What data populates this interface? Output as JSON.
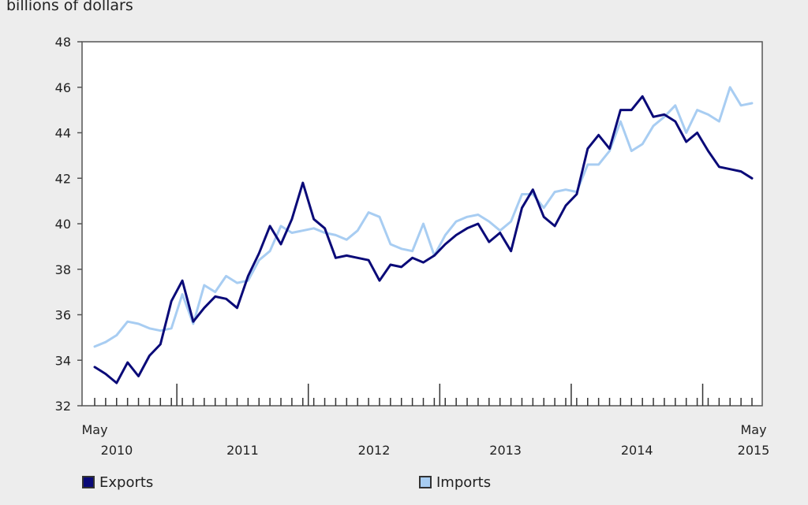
{
  "chart_data": {
    "type": "line",
    "ylabel": "billions of dollars",
    "ylim": [
      32,
      48
    ],
    "yticks": [
      32,
      34,
      36,
      38,
      40,
      42,
      44,
      46,
      48
    ],
    "x_start": "May 2010",
    "x_end": "May 2015",
    "x_tick_labels": [
      {
        "top": "May",
        "bottom": "2010"
      },
      {
        "top": "",
        "bottom": "2011"
      },
      {
        "top": "",
        "bottom": "2012"
      },
      {
        "top": "",
        "bottom": "2013"
      },
      {
        "top": "",
        "bottom": "2014"
      },
      {
        "top": "May",
        "bottom": "2015"
      }
    ],
    "grid": false,
    "legend_position": "bottom",
    "series": [
      {
        "name": "Exports",
        "color": "#0a0a78",
        "values": [
          33.7,
          33.4,
          33.0,
          33.9,
          33.3,
          34.2,
          34.7,
          36.6,
          37.5,
          35.7,
          36.3,
          36.8,
          36.7,
          36.3,
          37.7,
          38.7,
          39.9,
          39.1,
          40.2,
          41.8,
          40.2,
          39.8,
          38.5,
          38.6,
          38.5,
          38.4,
          37.5,
          38.2,
          38.1,
          38.5,
          38.3,
          38.6,
          39.1,
          39.5,
          39.8,
          40.0,
          39.2,
          39.6,
          38.8,
          40.7,
          41.5,
          40.3,
          39.9,
          40.8,
          41.3,
          43.3,
          43.9,
          43.3,
          45.0,
          45.0,
          45.6,
          44.7,
          44.8,
          44.5,
          43.6,
          44.0,
          43.2,
          42.5,
          42.4,
          42.3,
          42.0
        ]
      },
      {
        "name": "Imports",
        "color": "#a8cdf2",
        "values": [
          34.6,
          34.8,
          35.1,
          35.7,
          35.6,
          35.4,
          35.3,
          35.4,
          36.9,
          35.6,
          37.3,
          37.0,
          37.7,
          37.4,
          37.5,
          38.4,
          38.8,
          39.9,
          39.6,
          39.7,
          39.8,
          39.6,
          39.5,
          39.3,
          39.7,
          40.5,
          40.3,
          39.1,
          38.9,
          38.8,
          40.0,
          38.6,
          39.5,
          40.1,
          40.3,
          40.4,
          40.1,
          39.7,
          40.1,
          41.3,
          41.3,
          40.7,
          41.4,
          41.5,
          41.4,
          42.6,
          42.6,
          43.2,
          44.5,
          43.2,
          43.5,
          44.3,
          44.7,
          45.2,
          44.0,
          45.0,
          44.8,
          44.5,
          46.0,
          45.2,
          45.3
        ]
      }
    ]
  }
}
